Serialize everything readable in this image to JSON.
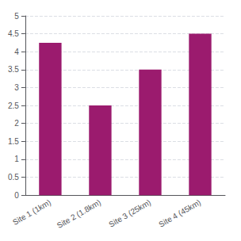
{
  "chart_data": {
    "type": "bar",
    "categories": [
      "Site 1 (1km)",
      "Site 2 (1.8km)",
      "Site 3 (25km)",
      "Site 4 (45km)"
    ],
    "values": [
      4.25,
      2.5,
      3.5,
      4.5
    ],
    "color": "#9b1b6e",
    "ylim": [
      0,
      5
    ],
    "yticks": [
      0,
      0.5,
      1,
      1.5,
      2,
      2.5,
      3,
      3.5,
      4,
      4.5,
      5
    ],
    "grid": true
  }
}
